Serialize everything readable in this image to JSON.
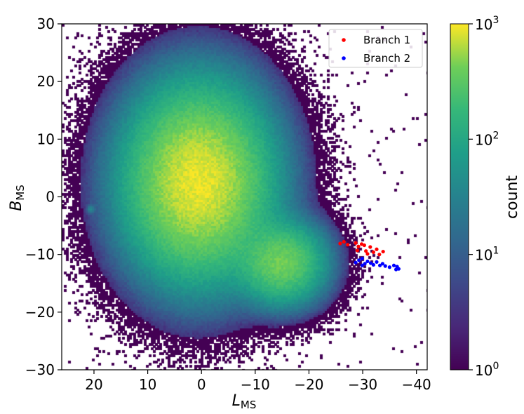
{
  "chart_data": {
    "type": "heatmap",
    "xlabel": "L",
    "xlabel_sub": "MS",
    "ylabel": "B",
    "ylabel_sub": "MS",
    "xlim": [
      26,
      -42
    ],
    "ylim": [
      -30,
      30
    ],
    "x_ticks": [
      20,
      10,
      0,
      -10,
      -20,
      -30,
      -40
    ],
    "x_tick_labels": [
      "20",
      "10",
      "0",
      "−10",
      "−20",
      "−30",
      "−40"
    ],
    "y_ticks": [
      30,
      20,
      10,
      0,
      -10,
      -20,
      -30
    ],
    "y_tick_labels": [
      "30",
      "20",
      "10",
      "0",
      "−10",
      "−20",
      "−30"
    ],
    "colorbar": {
      "label": "count",
      "scale": "log",
      "range": [
        1,
        1000
      ],
      "ticks": [
        {
          "base": "10",
          "exp": "0",
          "value": 1
        },
        {
          "base": "10",
          "exp": "1",
          "value": 10
        },
        {
          "base": "10",
          "exp": "2",
          "value": 100
        },
        {
          "base": "10",
          "exp": "3",
          "value": 1000
        }
      ],
      "colormap": "viridis"
    },
    "heatmap_components": [
      {
        "center": [
          0.5,
          2.5
        ],
        "sigma": [
          6.5,
          8.0
        ],
        "peak_count": 900
      },
      {
        "center": [
          -15.0,
          -11.5
        ],
        "sigma": [
          4.0,
          3.5
        ],
        "peak_count": 400
      },
      {
        "center": [
          20.5,
          -2.2
        ],
        "sigma": [
          0.4,
          0.4
        ],
        "peak_count": 30
      }
    ],
    "series": [
      {
        "name": "Branch 1",
        "color": "#ff0000",
        "type": "scatter",
        "points": [
          [
            -25.8,
            -8.1
          ],
          [
            -26.5,
            -7.8
          ],
          [
            -27.2,
            -8.3
          ],
          [
            -28.7,
            -8.0
          ],
          [
            -29.2,
            -8.6
          ],
          [
            -29.8,
            -8.2
          ],
          [
            -30.3,
            -8.4
          ],
          [
            -29.0,
            -9.3
          ],
          [
            -30.6,
            -9.4
          ],
          [
            -31.4,
            -8.7
          ],
          [
            -32.0,
            -9.6
          ],
          [
            -32.6,
            -9.1
          ],
          [
            -33.1,
            -10.0
          ],
          [
            -33.8,
            -9.5
          ],
          [
            -30.9,
            -9.9
          ]
        ]
      },
      {
        "name": "Branch 2",
        "color": "#0000ff",
        "type": "scatter",
        "points": [
          [
            -28.7,
            -11.4
          ],
          [
            -29.3,
            -11.0
          ],
          [
            -29.9,
            -10.7
          ],
          [
            -30.4,
            -11.6
          ],
          [
            -30.9,
            -11.2
          ],
          [
            -31.5,
            -11.5
          ],
          [
            -32.0,
            -11.8
          ],
          [
            -32.6,
            -11.3
          ],
          [
            -33.2,
            -11.9
          ],
          [
            -33.7,
            -11.6
          ],
          [
            -34.2,
            -12.0
          ],
          [
            -35.0,
            -12.2
          ],
          [
            -35.8,
            -11.9
          ],
          [
            -36.4,
            -12.1
          ],
          [
            -36.7,
            -12.5
          ],
          [
            -36.2,
            -12.6
          ],
          [
            -29.9,
            -11.9
          ]
        ]
      }
    ],
    "legend": {
      "placement": "top-right"
    }
  }
}
